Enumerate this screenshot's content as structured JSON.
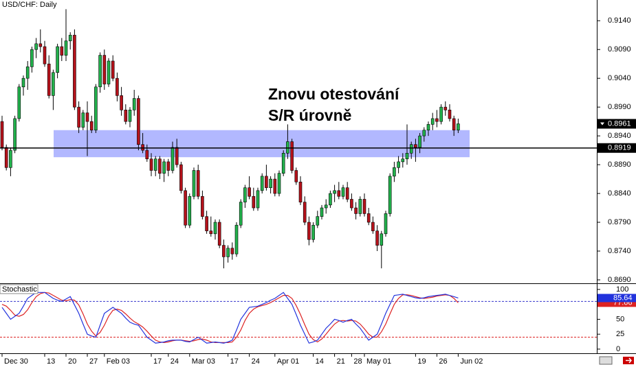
{
  "chart_data": {
    "type": "candlestick",
    "title": "USD/CHF: Daily",
    "annotation": [
      "Znovu otestování",
      "S/R úrovně"
    ],
    "up_color": "#22b14c",
    "down_color": "#b5121b",
    "zone": [
      0.8903,
      0.895
    ],
    "zone_color": "#aab0ff",
    "level": 0.8919,
    "last_price": 0.8961,
    "ylim": [
      0.8684,
      0.9176
    ],
    "yticks": [
      {
        "value": 0.914,
        "label": "0.9140"
      },
      {
        "value": 0.909,
        "label": "0.9090"
      },
      {
        "value": 0.904,
        "label": "0.9040"
      },
      {
        "value": 0.899,
        "label": "0.8990"
      },
      {
        "value": 0.894,
        "label": "0.8940"
      },
      {
        "value": 0.889,
        "label": "0.8890"
      },
      {
        "value": 0.884,
        "label": "0.8840"
      },
      {
        "value": 0.879,
        "label": "0.8790"
      },
      {
        "value": 0.874,
        "label": "0.8740"
      },
      {
        "value": 0.869,
        "label": "0.8690"
      }
    ],
    "categories": [
      "Dec 30",
      null,
      null,
      null,
      null,
      null,
      null,
      null,
      null,
      null,
      "13",
      null,
      null,
      null,
      null,
      "20",
      null,
      null,
      null,
      null,
      "27",
      null,
      null,
      null,
      "Feb 03",
      null,
      null,
      null,
      null,
      null,
      null,
      null,
      null,
      null,
      null,
      "17",
      null,
      null,
      null,
      "24",
      null,
      null,
      null,
      null,
      "Mar 03",
      null,
      null,
      null,
      null,
      null,
      null,
      null,
      null,
      "17",
      null,
      null,
      null,
      null,
      "24",
      null,
      null,
      null,
      null,
      null,
      "Apr 01",
      null,
      null,
      null,
      null,
      null,
      null,
      null,
      null,
      "14",
      null,
      null,
      null,
      null,
      "21",
      null,
      null,
      null,
      "28",
      null,
      null,
      "May 01",
      null,
      null,
      null,
      null,
      null,
      null,
      null,
      null,
      null,
      null,
      null,
      "19",
      null,
      null,
      null,
      null,
      "26",
      null,
      null,
      null,
      null,
      "Jun 02"
    ],
    "ohlc": [
      [
        0.8965,
        0.8975,
        0.8915,
        0.892
      ],
      [
        0.892,
        0.8925,
        0.888,
        0.8885
      ],
      [
        0.8885,
        0.892,
        0.887,
        0.8915
      ],
      [
        0.8915,
        0.8975,
        0.891,
        0.897
      ],
      [
        0.897,
        0.903,
        0.8965,
        0.9025
      ],
      [
        0.9025,
        0.9045,
        0.901,
        0.904
      ],
      [
        0.904,
        0.907,
        0.902,
        0.906
      ],
      [
        0.906,
        0.9095,
        0.905,
        0.909
      ],
      [
        0.909,
        0.911,
        0.9075,
        0.91
      ],
      [
        0.91,
        0.9125,
        0.9085,
        0.9095
      ],
      [
        0.9095,
        0.9105,
        0.906,
        0.9065
      ],
      [
        0.9065,
        0.908,
        0.9005,
        0.901
      ],
      [
        0.901,
        0.9055,
        0.8985,
        0.905
      ],
      [
        0.905,
        0.91,
        0.904,
        0.9095
      ],
      [
        0.9095,
        0.911,
        0.907,
        0.908
      ],
      [
        0.908,
        0.916,
        0.907,
        0.9105
      ],
      [
        0.9105,
        0.912,
        0.909,
        0.9115
      ],
      [
        0.9115,
        0.9125,
        0.8985,
        0.899
      ],
      [
        0.899,
        0.9,
        0.8945,
        0.8955
      ],
      [
        0.8955,
        0.8985,
        0.895,
        0.898
      ],
      [
        0.898,
        0.9,
        0.8905,
        0.8965
      ],
      [
        0.8965,
        0.8975,
        0.8945,
        0.895
      ],
      [
        0.895,
        0.903,
        0.8945,
        0.9025
      ],
      [
        0.9025,
        0.9085,
        0.9015,
        0.908
      ],
      [
        0.908,
        0.909,
        0.902,
        0.903
      ],
      [
        0.903,
        0.9075,
        0.9025,
        0.907
      ],
      [
        0.907,
        0.908,
        0.9035,
        0.904
      ],
      [
        0.904,
        0.905,
        0.9,
        0.901
      ],
      [
        0.901,
        0.9025,
        0.8975,
        0.8985
      ],
      [
        0.8985,
        0.8995,
        0.896,
        0.8965
      ],
      [
        0.8965,
        0.899,
        0.8955,
        0.8985
      ],
      [
        0.8985,
        0.902,
        0.8975,
        0.9005
      ],
      [
        0.9005,
        0.901,
        0.8915,
        0.8925
      ],
      [
        0.8925,
        0.8945,
        0.891,
        0.8915
      ],
      [
        0.8915,
        0.8925,
        0.8895,
        0.89
      ],
      [
        0.89,
        0.891,
        0.887,
        0.888
      ],
      [
        0.888,
        0.8905,
        0.887,
        0.89
      ],
      [
        0.89,
        0.8905,
        0.8865,
        0.8875
      ],
      [
        0.8875,
        0.89,
        0.886,
        0.8895
      ],
      [
        0.8895,
        0.89,
        0.887,
        0.888
      ],
      [
        0.888,
        0.893,
        0.8875,
        0.892
      ],
      [
        0.892,
        0.8935,
        0.8885,
        0.889
      ],
      [
        0.889,
        0.8895,
        0.884,
        0.8845
      ],
      [
        0.8845,
        0.885,
        0.878,
        0.8785
      ],
      [
        0.8785,
        0.884,
        0.878,
        0.8835
      ],
      [
        0.8835,
        0.8885,
        0.883,
        0.888
      ],
      [
        0.888,
        0.889,
        0.883,
        0.8835
      ],
      [
        0.8835,
        0.8845,
        0.8795,
        0.88
      ],
      [
        0.88,
        0.881,
        0.877,
        0.8775
      ],
      [
        0.8775,
        0.88,
        0.8765,
        0.877
      ],
      [
        0.877,
        0.8795,
        0.876,
        0.879
      ],
      [
        0.879,
        0.8795,
        0.8745,
        0.875
      ],
      [
        0.875,
        0.876,
        0.871,
        0.873
      ],
      [
        0.873,
        0.875,
        0.872,
        0.8745
      ],
      [
        0.8745,
        0.8755,
        0.8725,
        0.8735
      ],
      [
        0.8735,
        0.879,
        0.873,
        0.8785
      ],
      [
        0.8785,
        0.883,
        0.878,
        0.8825
      ],
      [
        0.8825,
        0.8855,
        0.8815,
        0.885
      ],
      [
        0.885,
        0.887,
        0.883,
        0.8835
      ],
      [
        0.8835,
        0.885,
        0.881,
        0.8815
      ],
      [
        0.8815,
        0.885,
        0.881,
        0.8845
      ],
      [
        0.8845,
        0.8875,
        0.884,
        0.887
      ],
      [
        0.887,
        0.889,
        0.8845,
        0.885
      ],
      [
        0.885,
        0.887,
        0.884,
        0.8865
      ],
      [
        0.8865,
        0.8875,
        0.8835,
        0.884
      ],
      [
        0.884,
        0.888,
        0.8835,
        0.8875
      ],
      [
        0.8875,
        0.8915,
        0.887,
        0.891
      ],
      [
        0.891,
        0.896,
        0.89,
        0.893
      ],
      [
        0.893,
        0.8935,
        0.8875,
        0.888
      ],
      [
        0.888,
        0.8885,
        0.8855,
        0.886
      ],
      [
        0.886,
        0.887,
        0.882,
        0.8825
      ],
      [
        0.8825,
        0.8835,
        0.8785,
        0.879
      ],
      [
        0.879,
        0.88,
        0.875,
        0.876
      ],
      [
        0.876,
        0.879,
        0.8755,
        0.8785
      ],
      [
        0.8785,
        0.881,
        0.878,
        0.88
      ],
      [
        0.88,
        0.882,
        0.8795,
        0.8815
      ],
      [
        0.8815,
        0.883,
        0.8805,
        0.882
      ],
      [
        0.882,
        0.8845,
        0.8815,
        0.884
      ],
      [
        0.884,
        0.8855,
        0.8825,
        0.8845
      ],
      [
        0.8845,
        0.886,
        0.883,
        0.8835
      ],
      [
        0.8835,
        0.8855,
        0.883,
        0.885
      ],
      [
        0.885,
        0.886,
        0.8825,
        0.883
      ],
      [
        0.883,
        0.884,
        0.881,
        0.8815
      ],
      [
        0.8815,
        0.8825,
        0.8795,
        0.8805
      ],
      [
        0.8805,
        0.8835,
        0.88,
        0.883
      ],
      [
        0.883,
        0.884,
        0.88,
        0.8805
      ],
      [
        0.8805,
        0.8815,
        0.8785,
        0.879
      ],
      [
        0.879,
        0.88,
        0.877,
        0.8775
      ],
      [
        0.8775,
        0.8785,
        0.874,
        0.875
      ],
      [
        0.875,
        0.8775,
        0.871,
        0.877
      ],
      [
        0.877,
        0.881,
        0.8765,
        0.8805
      ],
      [
        0.8805,
        0.8875,
        0.88,
        0.887
      ],
      [
        0.887,
        0.8895,
        0.886,
        0.8885
      ],
      [
        0.8885,
        0.8905,
        0.8875,
        0.8895
      ],
      [
        0.8895,
        0.891,
        0.8885,
        0.89
      ],
      [
        0.89,
        0.896,
        0.889,
        0.891
      ],
      [
        0.891,
        0.893,
        0.89,
        0.8925
      ],
      [
        0.8925,
        0.8935,
        0.8895,
        0.892
      ],
      [
        0.892,
        0.8945,
        0.891,
        0.894
      ],
      [
        0.894,
        0.8955,
        0.893,
        0.895
      ],
      [
        0.895,
        0.8965,
        0.894,
        0.896
      ],
      [
        0.896,
        0.898,
        0.895,
        0.897
      ],
      [
        0.897,
        0.8985,
        0.8955,
        0.8965
      ],
      [
        0.8965,
        0.8995,
        0.896,
        0.899
      ],
      [
        0.899,
        0.9,
        0.8975,
        0.8985
      ],
      [
        0.8985,
        0.8995,
        0.8965,
        0.897
      ],
      [
        0.897,
        0.8975,
        0.894,
        0.895
      ],
      [
        0.895,
        0.897,
        0.8945,
        0.8961
      ]
    ],
    "indicator": {
      "type": "line",
      "title": "Stochastic",
      "ylim": [
        -7,
        108
      ],
      "yticks": [
        100,
        75,
        50,
        25,
        0
      ],
      "levels": [
        {
          "value": 80,
          "color": "#3333cc"
        },
        {
          "value": 20,
          "color": "#dd2222"
        }
      ],
      "series": [
        {
          "color": "#2233dd",
          "values": [
            70,
            60,
            50,
            55,
            60,
            72,
            85,
            90,
            95,
            95,
            95,
            90,
            85,
            82,
            80,
            84,
            88,
            74,
            60,
            42,
            25,
            22,
            20,
            40,
            60,
            65,
            70,
            65,
            60,
            52,
            45,
            42,
            40,
            30,
            20,
            15,
            10,
            11,
            12,
            14,
            15,
            15,
            15,
            13,
            12,
            16,
            20,
            15,
            10,
            11,
            12,
            11,
            10,
            12,
            15,
            32,
            50,
            60,
            70,
            71,
            72,
            75,
            78,
            82,
            85,
            90,
            95,
            85,
            75,
            58,
            40,
            25,
            10,
            12,
            15,
            25,
            35,
            42,
            50,
            48,
            45,
            48,
            50,
            42,
            35,
            25,
            15,
            20,
            25,
            42,
            60,
            75,
            90,
            91,
            92,
            90,
            88,
            86,
            85,
            86,
            88,
            89,
            90,
            91,
            92,
            90,
            88,
            85.64
          ]
        },
        {
          "color": "#dd2222",
          "values": [
            75,
            72,
            65,
            57,
            55,
            58,
            66,
            78,
            88,
            93,
            95,
            94,
            90,
            86,
            82,
            81,
            83,
            82,
            74,
            59,
            42,
            30,
            22,
            28,
            40,
            55,
            65,
            67,
            65,
            59,
            52,
            46,
            42,
            37,
            30,
            22,
            15,
            12,
            11,
            12,
            14,
            15,
            15,
            14,
            13,
            14,
            16,
            17,
            15,
            12,
            11,
            11,
            11,
            11,
            12,
            20,
            32,
            48,
            60,
            67,
            71,
            73,
            75,
            78,
            82,
            86,
            90,
            90,
            85,
            73,
            58,
            41,
            25,
            16,
            12,
            17,
            25,
            34,
            42,
            47,
            48,
            47,
            48,
            47,
            42,
            34,
            25,
            20,
            20,
            29,
            42,
            59,
            75,
            85,
            91,
            91,
            90,
            88,
            86,
            85,
            86,
            87,
            89,
            90,
            91,
            90,
            85,
            77.66
          ]
        }
      ]
    }
  }
}
